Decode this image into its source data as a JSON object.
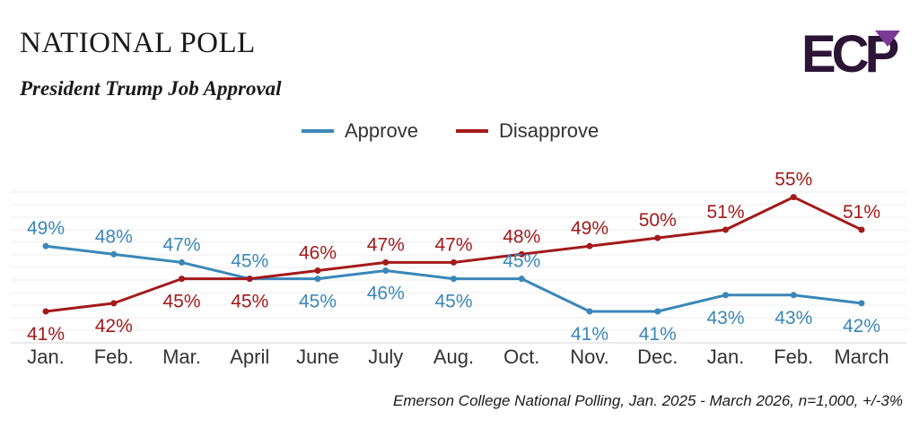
{
  "header": {
    "title": "NATIONAL POLL",
    "subtitle": "President Trump Job Approval",
    "logo_text": "ECP"
  },
  "footer": {
    "source": "Emerson College National Polling, Jan. 2025 - March 2026, n=1,000, +/-3%"
  },
  "colors": {
    "approve": "#3a87b8",
    "disapprove": "#a31a1a",
    "logo_dark": "#2b1436",
    "logo_accent": "#7b3a96"
  },
  "chart_data": {
    "type": "line",
    "categories": [
      "Jan.",
      "Feb.",
      "Mar.",
      "April",
      "June",
      "July",
      "Aug.",
      "Oct.",
      "Nov.",
      "Dec.",
      "Jan.",
      "Feb.",
      "March"
    ],
    "series": [
      {
        "name": "Approve",
        "color": "#3a87b8",
        "values": [
          49,
          48,
          47,
          45,
          45,
          46,
          45,
          45,
          41,
          41,
          43,
          43,
          42
        ],
        "labels": [
          "49%",
          "48%",
          "47%",
          "45%",
          "45%",
          "46%",
          "45%",
          "45%",
          "41%",
          "41%",
          "43%",
          "43%",
          "42%"
        ]
      },
      {
        "name": "Disapprove",
        "color": "#a31a1a",
        "values": [
          41,
          42,
          45,
          45,
          46,
          47,
          47,
          48,
          49,
          50,
          51,
          55,
          51
        ],
        "labels": [
          "41%",
          "42%",
          "45%",
          "45%",
          "46%",
          "47%",
          "47%",
          "48%",
          "49%",
          "50%",
          "51%",
          "55%",
          "51%"
        ]
      }
    ],
    "legend_position": "top-center",
    "grid": true
  }
}
